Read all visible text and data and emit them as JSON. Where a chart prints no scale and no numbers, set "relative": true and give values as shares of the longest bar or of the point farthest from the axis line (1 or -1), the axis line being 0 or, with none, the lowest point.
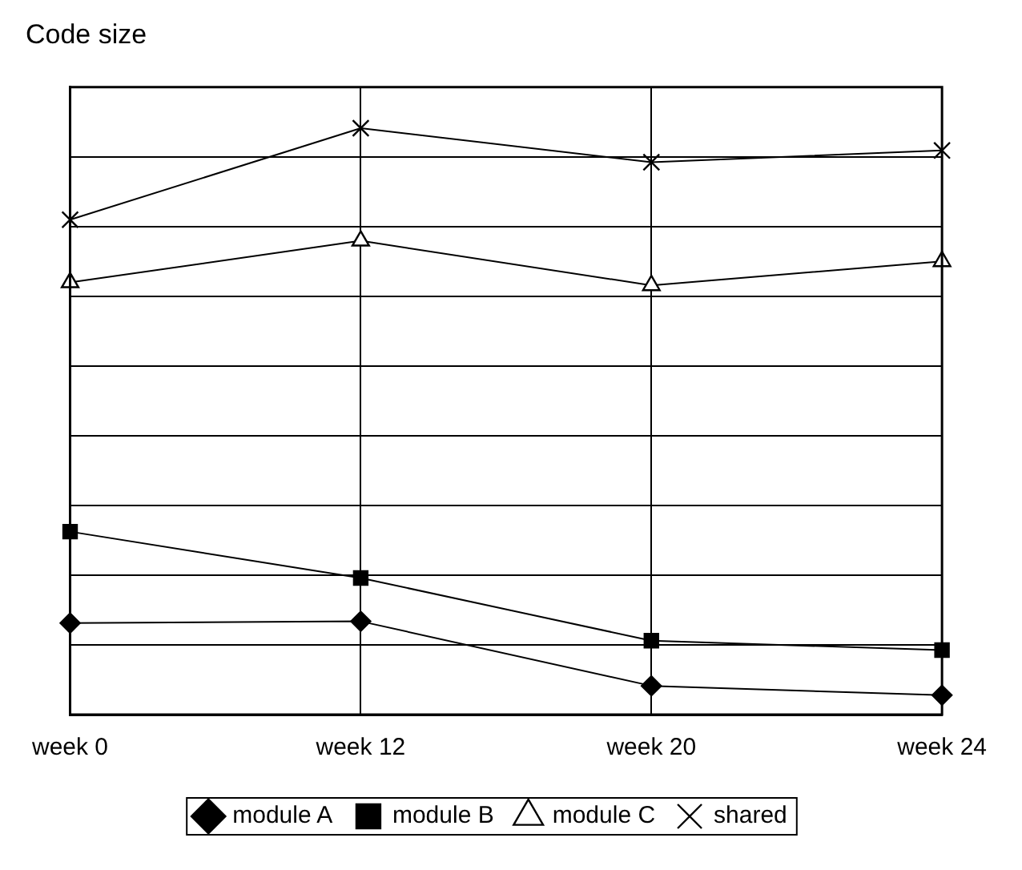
{
  "chart_data": {
    "type": "line",
    "title": "Code size",
    "relative": true,
    "categories": [
      "week 0",
      "week 12",
      "week 20",
      "week 24"
    ],
    "series": [
      {
        "name": "module A",
        "color": "#000000",
        "marker": "diamond",
        "values": [
          0.156,
          0.159,
          0.049,
          0.033
        ]
      },
      {
        "name": "module B",
        "color": "#000000",
        "marker": "square",
        "values": [
          0.312,
          0.233,
          0.126,
          0.11
        ]
      },
      {
        "name": "module C",
        "color": "#000000",
        "marker": "triangle",
        "values": [
          0.737,
          0.808,
          0.732,
          0.773
        ]
      },
      {
        "name": "shared",
        "color": "#000000",
        "marker": "cross",
        "values": [
          0.844,
          1,
          0.942,
          0.962
        ]
      }
    ],
    "grid": true,
    "legend": "bottom",
    "line_style": "solid"
  }
}
